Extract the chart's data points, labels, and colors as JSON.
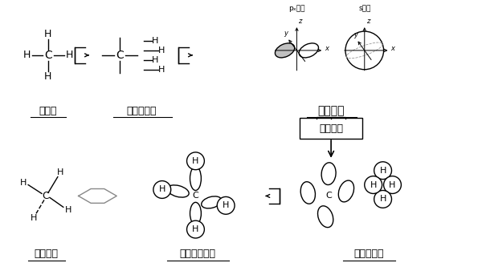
{
  "bg_color": "#ffffff",
  "label_kagakushiki": "化学式",
  "label_valence_rep": "原子価表現",
  "label_atomic_orbital": "原子軌道",
  "label_hybrid_orbital": "混成軌道",
  "label_mol_structure": "分子構造",
  "label_vb_method": "原子価結合法",
  "label_valence_state": "原子価状態",
  "label_pz": "pₓ軌道",
  "label_s": "s軌道"
}
